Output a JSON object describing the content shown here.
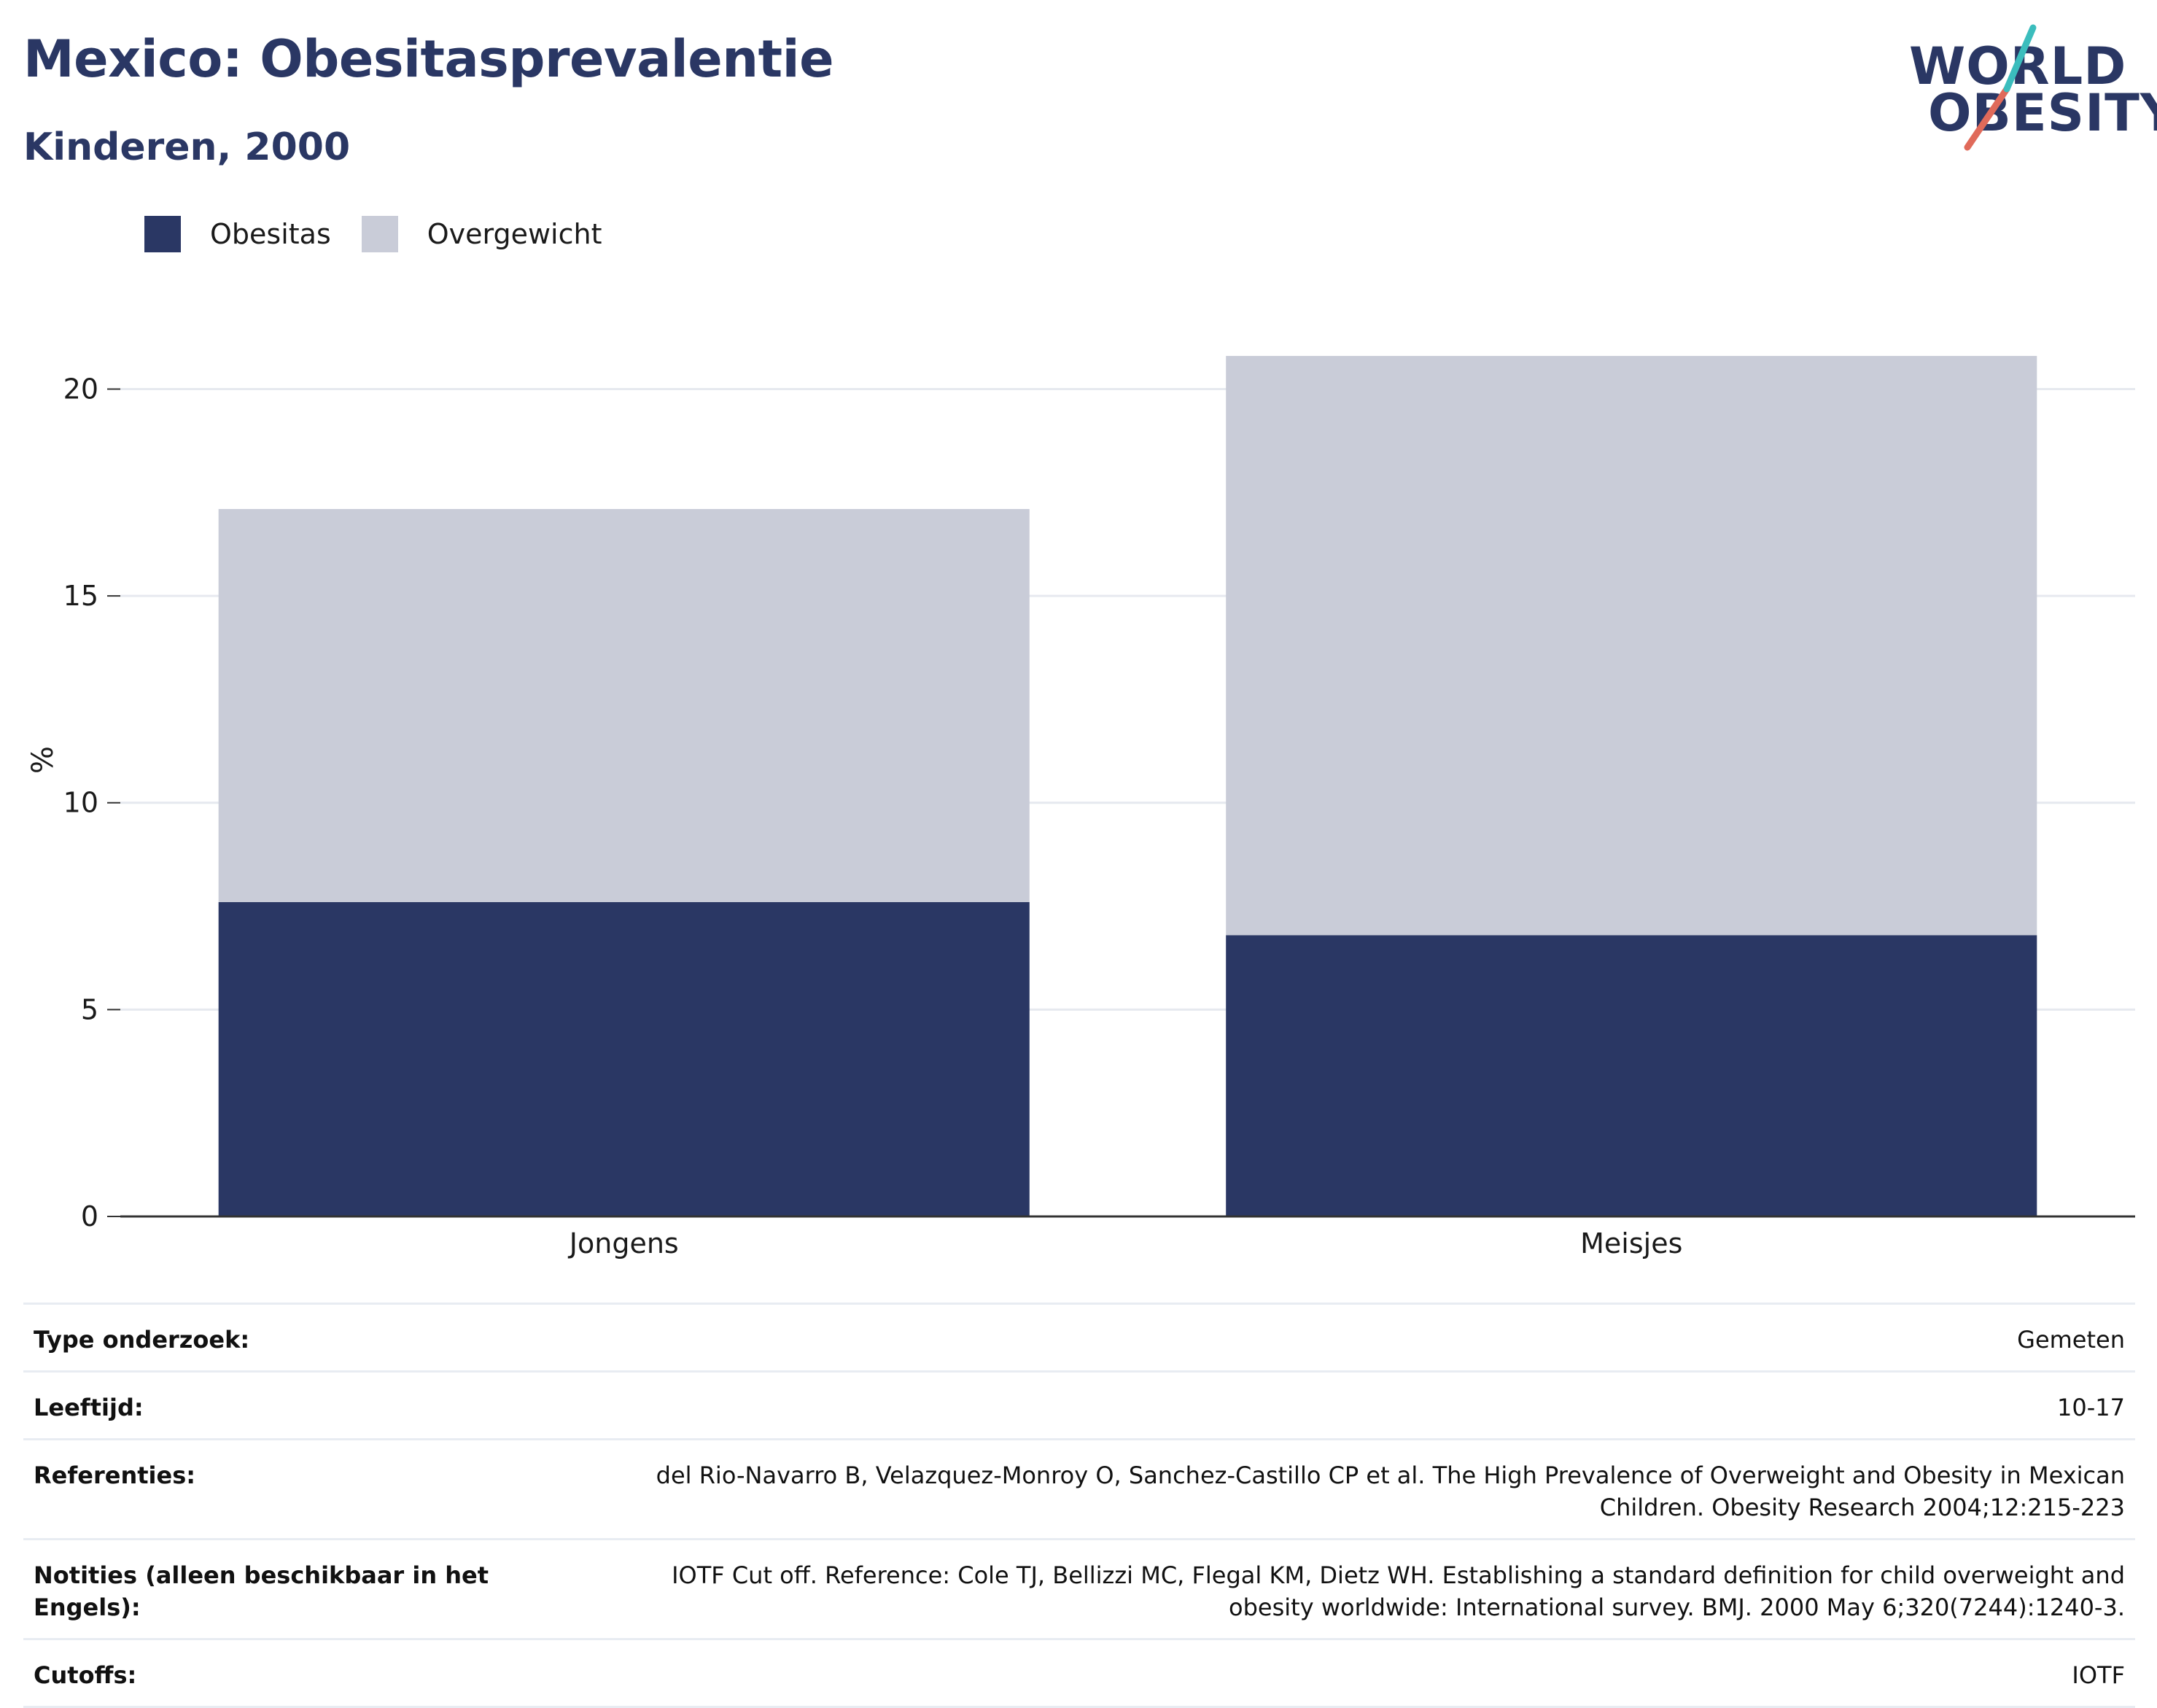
{
  "title": "Mexico: Obesitasprevalentie",
  "subtitle": "Kinderen, 2000",
  "logo": {
    "line1": "WORLD",
    "line2": "OBESITY"
  },
  "colors": {
    "obesitas": "#2a3764",
    "overgewicht": "#c9ccd8",
    "grid": "#e6e9ef",
    "axis": "#333333"
  },
  "chart_data": {
    "type": "bar",
    "stacked": true,
    "categories": [
      "Jongens",
      "Meisjes"
    ],
    "series": [
      {
        "name": "Obesitas",
        "values": [
          7.6,
          6.8
        ]
      },
      {
        "name": "Overgewicht",
        "values": [
          9.5,
          14.0
        ]
      }
    ],
    "ylabel": "%",
    "ylim": [
      0,
      22
    ],
    "yticks": [
      0,
      5,
      10,
      15,
      20
    ],
    "grid": true,
    "legend_position": "top-left"
  },
  "meta": [
    {
      "key": "Type onderzoek:",
      "value": "Gemeten"
    },
    {
      "key": "Leeftijd:",
      "value": "10-17"
    },
    {
      "key": "Referenties:",
      "value": "del Rio-Navarro B, Velazquez-Monroy O, Sanchez-Castillo CP et al. The High Prevalence of Overweight and Obesity in Mexican Children. Obesity Research 2004;12:215-223"
    },
    {
      "key": "Notities (alleen beschikbaar in het Engels):",
      "value": "IOTF Cut off. Reference: Cole TJ, Bellizzi MC, Flegal KM, Dietz WH. Establishing a standard definition for child overweight and obesity worldwide: International survey. BMJ. 2000 May 6;320(7244):1240-3."
    },
    {
      "key": "Cutoffs:",
      "value": "IOTF"
    }
  ]
}
